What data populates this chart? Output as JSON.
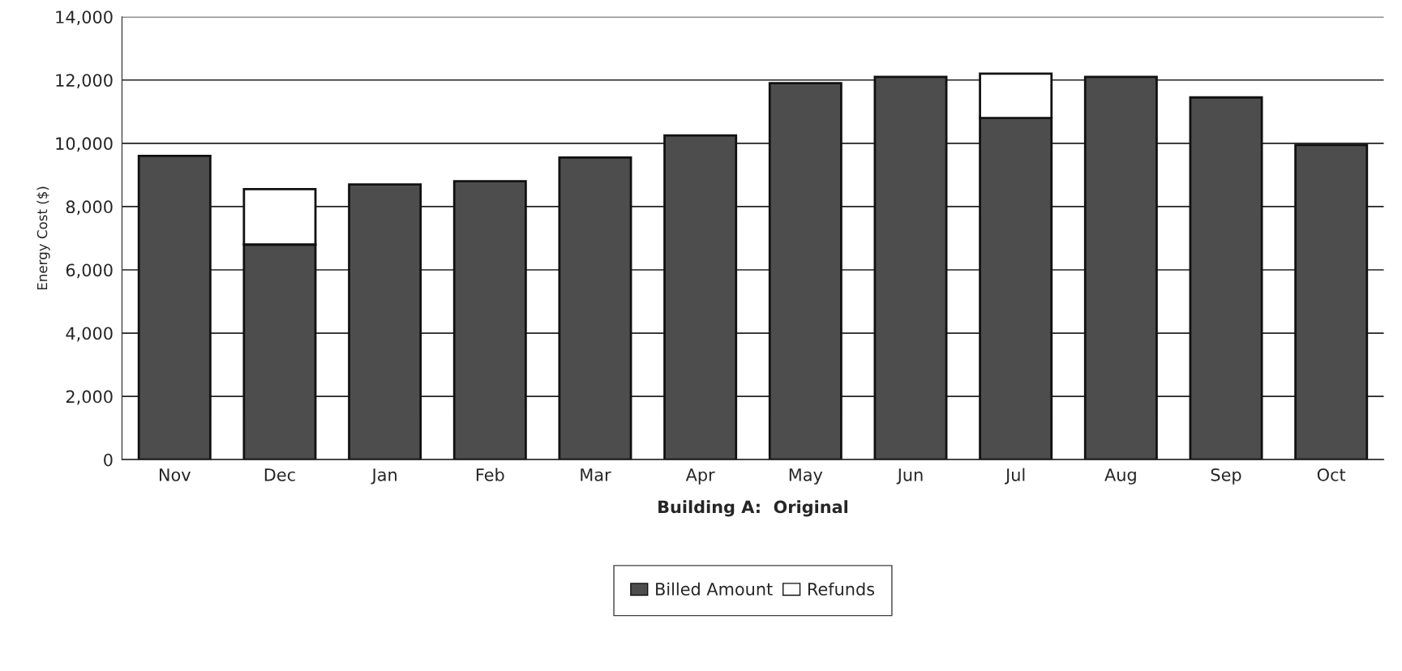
{
  "chart_data": {
    "type": "bar",
    "stacked": true,
    "xlabel": "Building A:  Original",
    "ylabel": "Energy Cost ($)",
    "categories": [
      "Nov",
      "Dec",
      "Jan",
      "Feb",
      "Mar",
      "Apr",
      "May",
      "Jun",
      "Jul",
      "Aug",
      "Sep",
      "Oct"
    ],
    "series": [
      {
        "name": "Billed Amount",
        "color": "#4d4d4d",
        "values": [
          9600,
          6800,
          8700,
          8800,
          9550,
          10250,
          11900,
          12100,
          10800,
          12100,
          11450,
          9950
        ]
      },
      {
        "name": "Refunds",
        "color": "#ffffff",
        "values": [
          null,
          1750,
          null,
          null,
          null,
          null,
          null,
          null,
          1400,
          null,
          null,
          null
        ]
      }
    ],
    "ylim": [
      0,
      14000
    ],
    "yticks": [
      {
        "value": 0,
        "label": "0"
      },
      {
        "value": 2000,
        "label": "2,000"
      },
      {
        "value": 4000,
        "label": "4,000"
      },
      {
        "value": 6000,
        "label": "6,000"
      },
      {
        "value": 8000,
        "label": "8,000"
      },
      {
        "value": 10000,
        "label": "10,000"
      },
      {
        "value": 12000,
        "label": "12,000"
      },
      {
        "value": 14000,
        "label": "14,000"
      }
    ],
    "grid": "y",
    "legend": "bottom"
  }
}
